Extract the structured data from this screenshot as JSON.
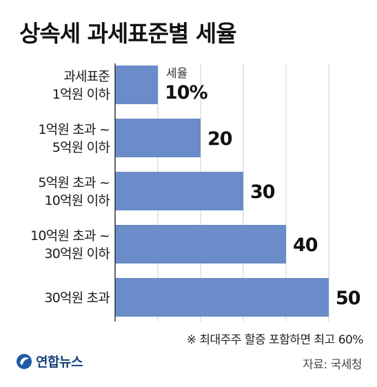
{
  "title": "상속세 과세표준별 세율",
  "note": "※ 최대주주 할증 포함하면 최고 60%",
  "source": "자료: 국세청",
  "logo": {
    "text": "연합뉴스",
    "icon": "yonhap-logo-icon"
  },
  "colors": {
    "bar": "#6a8cc8",
    "grid": "#cfcfcf",
    "axis": "#333333"
  },
  "chart_data": {
    "type": "bar",
    "orientation": "horizontal",
    "categories": [
      [
        "과세표준",
        "1억원 이하"
      ],
      [
        "1억원 초과 ~",
        "5억원 이하"
      ],
      [
        "5억원 초과 ~",
        "10억원 이하"
      ],
      [
        "10억원 초과 ~",
        "30억원 이하"
      ],
      [
        "30억원 초과"
      ]
    ],
    "values": [
      10,
      20,
      30,
      40,
      50
    ],
    "value_labels": [
      "10%",
      "20",
      "30",
      "40",
      "50"
    ],
    "series_label": "세율",
    "xlim": [
      0,
      50
    ],
    "grid": true
  }
}
